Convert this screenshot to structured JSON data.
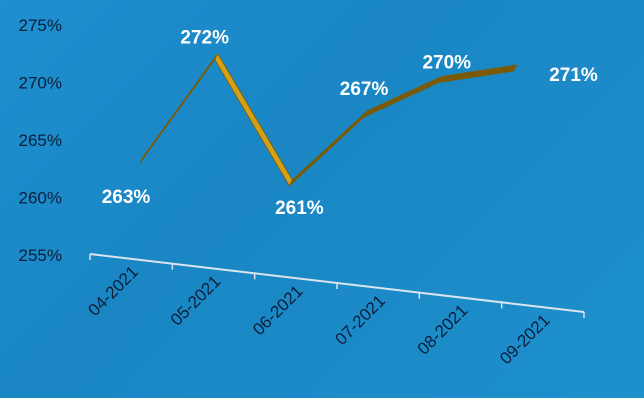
{
  "chart_data": {
    "type": "line",
    "categories": [
      "04-2021",
      "05-2021",
      "06-2021",
      "07-2021",
      "08-2021",
      "09-2021"
    ],
    "series": [
      {
        "values": [
          263,
          272,
          261,
          267,
          270,
          271
        ]
      }
    ],
    "data_labels": [
      "263%",
      "272%",
      "261%",
      "267%",
      "270%",
      "271%"
    ],
    "y_ticks": [
      "275%",
      "270%",
      "265%",
      "260%",
      "255%"
    ],
    "ylim": [
      255,
      275
    ],
    "grid": false,
    "colors": {
      "line_top": "#d4a017",
      "line_side": "#7a5a05",
      "axis": "#d9e4ee"
    }
  }
}
